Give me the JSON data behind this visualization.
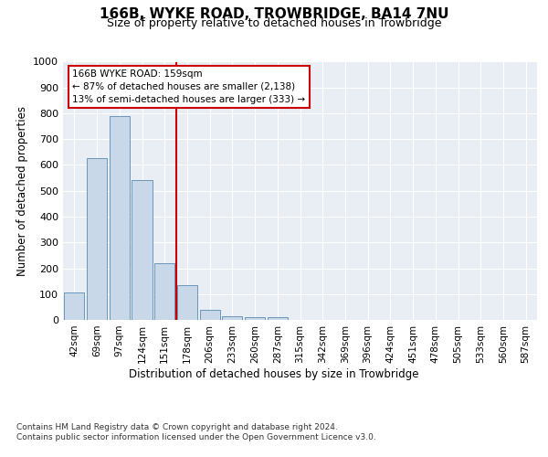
{
  "title": "166B, WYKE ROAD, TROWBRIDGE, BA14 7NU",
  "subtitle": "Size of property relative to detached houses in Trowbridge",
  "xlabel": "Distribution of detached houses by size in Trowbridge",
  "ylabel": "Number of detached properties",
  "bar_labels": [
    "42sqm",
    "69sqm",
    "97sqm",
    "124sqm",
    "151sqm",
    "178sqm",
    "206sqm",
    "233sqm",
    "260sqm",
    "287sqm",
    "315sqm",
    "342sqm",
    "369sqm",
    "396sqm",
    "424sqm",
    "451sqm",
    "478sqm",
    "505sqm",
    "533sqm",
    "560sqm",
    "587sqm"
  ],
  "bar_values": [
    105,
    625,
    790,
    540,
    220,
    135,
    40,
    15,
    10,
    10,
    0,
    0,
    0,
    0,
    0,
    0,
    0,
    0,
    0,
    0,
    0
  ],
  "bar_color": "#c8d8e8",
  "bar_edge_color": "#5a8ab0",
  "ref_line_x": 4.5,
  "ref_line_label": "166B WYKE ROAD: 159sqm",
  "annotation_line1": "← 87% of detached houses are smaller (2,138)",
  "annotation_line2": "13% of semi-detached houses are larger (333) →",
  "annotation_box_color": "#ffffff",
  "annotation_box_edge": "#cc0000",
  "ref_line_color": "#cc0000",
  "ylim": [
    0,
    1000
  ],
  "yticks": [
    0,
    100,
    200,
    300,
    400,
    500,
    600,
    700,
    800,
    900,
    1000
  ],
  "background_color": "#e8eef4",
  "footer1": "Contains HM Land Registry data © Crown copyright and database right 2024.",
  "footer2": "Contains public sector information licensed under the Open Government Licence v3.0."
}
